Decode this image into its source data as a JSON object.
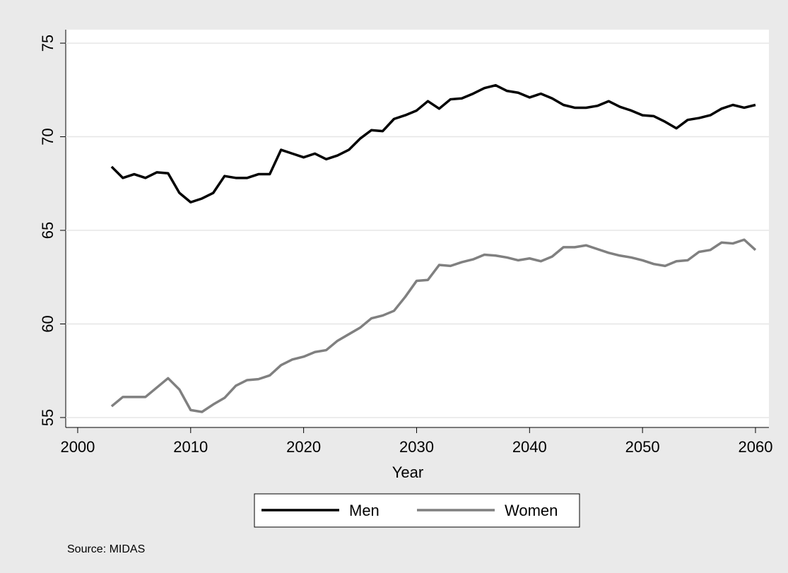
{
  "chart_data": {
    "type": "line",
    "x_label": "Year",
    "note": "Source: MIDAS",
    "x": [
      2003,
      2004,
      2005,
      2006,
      2007,
      2008,
      2009,
      2010,
      2011,
      2012,
      2013,
      2014,
      2015,
      2016,
      2017,
      2018,
      2019,
      2020,
      2021,
      2022,
      2023,
      2024,
      2025,
      2026,
      2027,
      2028,
      2029,
      2030,
      2031,
      2032,
      2033,
      2034,
      2035,
      2036,
      2037,
      2038,
      2039,
      2040,
      2041,
      2042,
      2043,
      2044,
      2045,
      2046,
      2047,
      2048,
      2049,
      2050,
      2051,
      2052,
      2053,
      2054,
      2055,
      2056,
      2057,
      2058,
      2059,
      2060
    ],
    "series": [
      {
        "name": "Men",
        "color": "#000000",
        "values": [
          68.4,
          67.8,
          68.0,
          67.8,
          68.1,
          68.05,
          67.0,
          66.5,
          66.7,
          67.0,
          67.9,
          67.8,
          67.8,
          68.0,
          68.0,
          69.3,
          69.1,
          68.9,
          69.1,
          68.8,
          69.0,
          69.3,
          69.9,
          70.35,
          70.3,
          70.95,
          71.15,
          71.4,
          71.9,
          71.5,
          72.0,
          72.05,
          72.3,
          72.6,
          72.75,
          72.45,
          72.35,
          72.1,
          72.3,
          72.05,
          71.7,
          71.55,
          71.55,
          71.65,
          71.9,
          71.6,
          71.4,
          71.15,
          71.1,
          70.8,
          70.45,
          70.9,
          71.0,
          71.15,
          71.5,
          71.7,
          71.55,
          71.7
        ]
      },
      {
        "name": "Women",
        "color": "#808080",
        "values": [
          55.6,
          56.1,
          56.1,
          56.1,
          56.6,
          57.1,
          56.5,
          55.4,
          55.3,
          55.7,
          56.05,
          56.7,
          57.0,
          57.05,
          57.25,
          57.8,
          58.1,
          58.25,
          58.5,
          58.6,
          59.1,
          59.45,
          59.8,
          60.3,
          60.45,
          60.7,
          61.45,
          62.3,
          62.35,
          63.15,
          63.1,
          63.3,
          63.45,
          63.7,
          63.65,
          63.55,
          63.4,
          63.5,
          63.35,
          63.6,
          64.1,
          64.1,
          64.2,
          64.0,
          63.8,
          63.65,
          63.55,
          63.4,
          63.2,
          63.1,
          63.35,
          63.4,
          63.85,
          63.95,
          64.35,
          64.3,
          64.5,
          63.95
        ]
      }
    ],
    "xlim": [
      1998.94,
      2061.19
    ],
    "xticks": [
      2000,
      2010,
      2020,
      2030,
      2040,
      2050,
      2060
    ],
    "ylim": [
      54.47,
      75.72
    ],
    "yticks": [
      55,
      60,
      65,
      70,
      75
    ],
    "grid": true,
    "legend": "bottom"
  }
}
